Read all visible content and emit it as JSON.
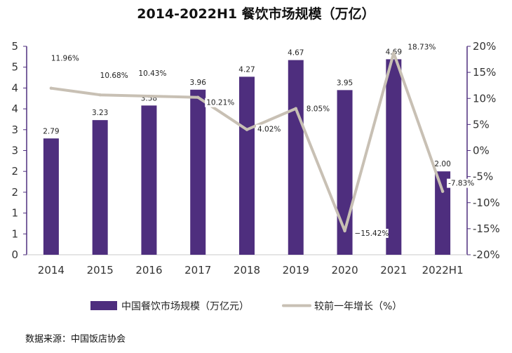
{
  "chart_data": {
    "type": "bar",
    "title": "2014-2022H1 餐饮市场规模（万亿）",
    "categories": [
      "2014",
      "2015",
      "2016",
      "2017",
      "2018",
      "2019",
      "2020",
      "2021",
      "2022H1"
    ],
    "left_axis": {
      "tick_labels": [
        "0",
        "1",
        "1",
        "2",
        "2",
        "3",
        "3",
        "4",
        "4",
        "5",
        "5"
      ],
      "ylim": [
        0,
        5
      ]
    },
    "right_axis": {
      "tick_labels": [
        "-20%",
        "-15%",
        "-10%",
        "-5%",
        "0%",
        "5%",
        "10%",
        "15%",
        "20%"
      ],
      "ylim": [
        -20,
        20
      ]
    },
    "series": [
      {
        "name": "中国餐饮市场规模（万亿元）",
        "type": "bar",
        "axis": "left",
        "color": "#4e2e7e",
        "values": [
          2.79,
          3.23,
          3.58,
          3.96,
          4.27,
          4.67,
          3.95,
          4.69,
          2.0
        ],
        "labels": [
          "2.79",
          "3.23",
          "3.58",
          "3.96",
          "4.27",
          "4.67",
          "3.95",
          "4.69",
          "2.00"
        ]
      },
      {
        "name": "较前一年增长（%）",
        "type": "line",
        "axis": "right",
        "color": "#c8c0b4",
        "values": [
          11.96,
          10.68,
          10.43,
          10.21,
          4.02,
          8.05,
          -15.42,
          18.73,
          -7.83
        ],
        "labels": [
          "11.96%",
          "10.68%",
          "10.43%",
          "10.21%",
          "4.02%",
          "8.05%",
          "−15.42%",
          "18.73%",
          "-7.83%"
        ]
      }
    ],
    "legend_position": "bottom",
    "grid": false
  },
  "source_note": "数据来源：中国饭店协会"
}
